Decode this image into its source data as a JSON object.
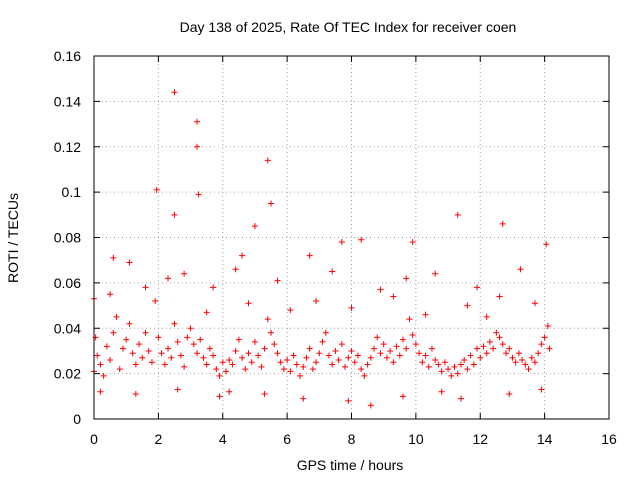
{
  "colors": {
    "series": "#ff0000",
    "grid": "#a0a0a0",
    "frame": "#000000"
  },
  "chart_data": {
    "type": "scatter",
    "title": "Day 138 of 2025, Rate Of TEC Index for receiver coen",
    "xlabel": "GPS time / hours",
    "ylabel": "ROTI / TECUs",
    "xlim": [
      0,
      16
    ],
    "ylim": [
      0,
      0.16
    ],
    "xticks": [
      0,
      2,
      4,
      6,
      8,
      10,
      12,
      14,
      16
    ],
    "yticks": [
      0,
      0.02,
      0.04,
      0.06,
      0.08,
      0.1,
      0.12,
      0.14,
      0.16
    ],
    "xtick_labels": [
      "0",
      "2",
      "4",
      "6",
      "8",
      "10",
      "12",
      "14",
      "16"
    ],
    "ytick_labels": [
      "0",
      "0.02",
      "0.04",
      "0.06",
      "0.08",
      "0.1",
      "0.12",
      "0.14",
      "0.16"
    ],
    "grid": true,
    "marker": "+",
    "data_extent_hours": [
      0,
      14.2
    ],
    "series": [
      {
        "name": "ROTI",
        "x": [
          0.0,
          0.1,
          0.2,
          0.3,
          0.4,
          0.5,
          0.6,
          0.7,
          0.8,
          0.9,
          1.0,
          1.1,
          1.2,
          1.3,
          1.4,
          1.5,
          1.6,
          1.7,
          1.8,
          1.9,
          2.0,
          2.1,
          2.2,
          2.3,
          2.4,
          2.5,
          2.6,
          2.7,
          2.8,
          2.9,
          3.0,
          3.1,
          3.2,
          3.3,
          3.4,
          3.5,
          3.6,
          3.7,
          3.8,
          3.9,
          4.0,
          4.1,
          4.2,
          4.3,
          4.4,
          4.5,
          4.6,
          4.7,
          4.8,
          4.9,
          5.0,
          5.1,
          5.2,
          5.3,
          5.4,
          5.5,
          5.6,
          5.7,
          5.8,
          5.9,
          6.0,
          6.1,
          6.2,
          6.3,
          6.4,
          6.5,
          6.6,
          6.7,
          6.8,
          6.9,
          7.0,
          7.1,
          7.2,
          7.3,
          7.4,
          7.5,
          7.6,
          7.7,
          7.8,
          7.9,
          8.0,
          8.1,
          8.2,
          8.3,
          8.4,
          8.5,
          8.6,
          8.7,
          8.8,
          8.9,
          9.0,
          9.1,
          9.2,
          9.3,
          9.4,
          9.5,
          9.6,
          9.7,
          9.8,
          9.9,
          10.0,
          10.1,
          10.2,
          10.3,
          10.4,
          10.5,
          10.6,
          10.7,
          10.8,
          10.9,
          11.0,
          11.1,
          11.2,
          11.3,
          11.4,
          11.5,
          11.6,
          11.7,
          11.8,
          11.9,
          12.0,
          12.1,
          12.2,
          12.3,
          12.4,
          12.5,
          12.6,
          12.7,
          12.8,
          12.9,
          13.0,
          13.1,
          13.2,
          13.3,
          13.4,
          13.5,
          13.6,
          13.7,
          13.8,
          13.9,
          14.0,
          14.1,
          14.15,
          0.0,
          0.05,
          2.5,
          3.2,
          3.2,
          3.25,
          5.4,
          5.5,
          1.95,
          2.5,
          4.6,
          5.0,
          7.7,
          8.3,
          9.9,
          11.3,
          12.7,
          13.25,
          0.6,
          1.1,
          2.8,
          3.7,
          4.4,
          5.7,
          6.7,
          7.4,
          8.9,
          9.7,
          10.6,
          11.9,
          12.6,
          14.05,
          0.5,
          1.6,
          2.3,
          3.5,
          4.8,
          6.1,
          6.9,
          8.0,
          9.3,
          10.3,
          11.6,
          12.2,
          13.7,
          0.2,
          1.3,
          2.6,
          3.9,
          4.2,
          5.3,
          6.5,
          7.9,
          8.6,
          9.6,
          10.8,
          11.4,
          12.9,
          13.9
        ],
        "y": [
          0.021,
          0.028,
          0.024,
          0.019,
          0.032,
          0.026,
          0.038,
          0.045,
          0.022,
          0.031,
          0.035,
          0.042,
          0.029,
          0.024,
          0.033,
          0.027,
          0.038,
          0.03,
          0.025,
          0.052,
          0.036,
          0.029,
          0.024,
          0.031,
          0.027,
          0.042,
          0.034,
          0.028,
          0.023,
          0.036,
          0.04,
          0.033,
          0.029,
          0.035,
          0.027,
          0.024,
          0.031,
          0.028,
          0.022,
          0.019,
          0.025,
          0.021,
          0.026,
          0.024,
          0.03,
          0.035,
          0.027,
          0.022,
          0.029,
          0.025,
          0.034,
          0.028,
          0.023,
          0.031,
          0.044,
          0.038,
          0.033,
          0.029,
          0.025,
          0.022,
          0.026,
          0.021,
          0.028,
          0.024,
          0.019,
          0.023,
          0.027,
          0.031,
          0.022,
          0.025,
          0.029,
          0.034,
          0.038,
          0.028,
          0.024,
          0.03,
          0.026,
          0.033,
          0.023,
          0.027,
          0.03,
          0.025,
          0.028,
          0.022,
          0.019,
          0.024,
          0.027,
          0.031,
          0.036,
          0.029,
          0.033,
          0.027,
          0.03,
          0.025,
          0.032,
          0.028,
          0.035,
          0.031,
          0.044,
          0.037,
          0.033,
          0.029,
          0.025,
          0.028,
          0.023,
          0.031,
          0.026,
          0.024,
          0.021,
          0.025,
          0.022,
          0.019,
          0.023,
          0.02,
          0.024,
          0.026,
          0.022,
          0.028,
          0.024,
          0.031,
          0.027,
          0.032,
          0.029,
          0.034,
          0.031,
          0.038,
          0.036,
          0.033,
          0.029,
          0.031,
          0.027,
          0.025,
          0.029,
          0.026,
          0.024,
          0.022,
          0.027,
          0.025,
          0.029,
          0.033,
          0.036,
          0.041,
          0.031,
          0.053,
          0.036,
          0.144,
          0.131,
          0.12,
          0.099,
          0.114,
          0.095,
          0.101,
          0.09,
          0.072,
          0.085,
          0.078,
          0.079,
          0.078,
          0.09,
          0.086,
          0.066,
          0.071,
          0.069,
          0.064,
          0.058,
          0.066,
          0.061,
          0.072,
          0.065,
          0.057,
          0.062,
          0.064,
          0.058,
          0.054,
          0.077,
          0.055,
          0.058,
          0.062,
          0.047,
          0.051,
          0.048,
          0.052,
          0.049,
          0.054,
          0.046,
          0.05,
          0.045,
          0.051,
          0.012,
          0.011,
          0.013,
          0.01,
          0.012,
          0.011,
          0.009,
          0.008,
          0.006,
          0.01,
          0.012,
          0.009,
          0.011,
          0.013
        ]
      }
    ]
  }
}
